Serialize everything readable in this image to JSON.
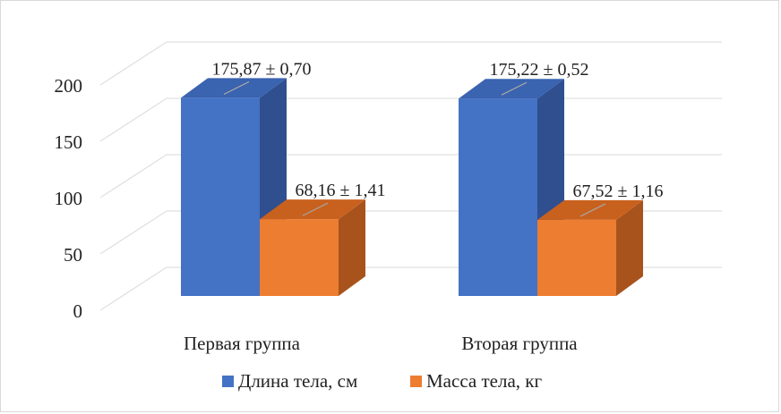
{
  "chart_data": {
    "type": "bar",
    "style": "3d-clustered-column",
    "categories": [
      "Первая группа",
      "Вторая группа"
    ],
    "series": [
      {
        "name": "Длина тела, см",
        "values": [
          175.87,
          175.22
        ],
        "labels": [
          "175,87 ± 0,70",
          "175,22 ± 0,52"
        ],
        "color": "#4472c4",
        "side_color": "#2f4f8f",
        "top_color": "#3a63b0"
      },
      {
        "name": "Масса тела, кг",
        "values": [
          68.16,
          67.52
        ],
        "labels": [
          "68,16 ± 1,41",
          "67,52 ± 1,16"
        ],
        "color": "#ed7d31",
        "side_color": "#a9531c",
        "top_color": "#c9611e"
      }
    ],
    "y_ticks": [
      "0",
      "50",
      "100",
      "150",
      "200"
    ],
    "ylim": [
      0,
      200
    ],
    "grid": true,
    "legend": "bottom"
  }
}
